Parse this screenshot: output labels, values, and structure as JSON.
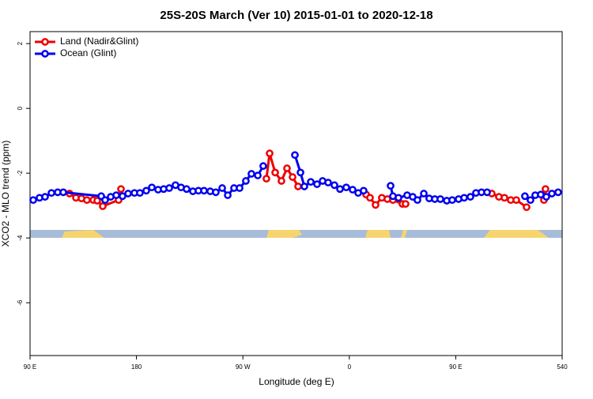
{
  "chart_data": {
    "type": "line",
    "title": "25S-20S March (Ver 10)   2015-01-01 to 2020-12-18",
    "x_label": "Longitude (deg E)",
    "y_label": "XCO2 - MLO trend (ppm)",
    "xlim": [
      90,
      540
    ],
    "ylim": [
      -7.63,
      2.37
    ],
    "xticks": [
      {
        "value": 90,
        "label": "90 E"
      },
      180,
      {
        "value": 270,
        "label": "90 W"
      },
      {
        "value": 360,
        "label": "0"
      },
      {
        "value": 450,
        "label": "90 E"
      },
      540
    ],
    "yticks": [
      2,
      0,
      -2,
      -4,
      -6
    ],
    "legend": "top-left",
    "series": [
      {
        "name": "Land (Nadir&Glint)",
        "color": "#ee0000",
        "x": [
          123.4,
          128.8,
          133.5,
          138.1,
          143.5,
          146.8,
          151.5,
          164.9,
          166.9,
          null,
          289.9,
          292.6,
          297.3,
          302.6,
          307.3,
          312.0,
          316.7,
          null,
          374.2,
          377.5,
          382.2,
          387.5,
          392.2,
          396.9,
          404.9,
          407.6,
          null,
          480.5,
          486.5,
          491.2,
          496.5,
          501.2,
          509.9,
          null,
          524.6,
          525.9
        ],
        "values": [
          -2.63,
          -2.76,
          -2.78,
          -2.83,
          -2.83,
          -2.85,
          -3.02,
          -2.83,
          -2.49,
          null,
          -2.17,
          -1.39,
          -1.98,
          -2.24,
          -1.85,
          -2.12,
          -2.41,
          null,
          -2.66,
          -2.76,
          -2.98,
          -2.76,
          -2.8,
          -2.83,
          -2.95,
          -2.95,
          null,
          -2.63,
          -2.73,
          -2.76,
          -2.83,
          -2.83,
          -3.05,
          null,
          -2.83,
          -2.49
        ]
      },
      {
        "name": "Ocean (Glint)",
        "color": "#0000ee",
        "x": [
          92.7,
          98.0,
          102.7,
          108.1,
          113.4,
          118.1,
          150.2,
          153.5,
          158.2,
          162.9,
          168.2,
          172.9,
          178.3,
          182.9,
          188.3,
          193.0,
          198.3,
          203.0,
          207.7,
          213.0,
          217.7,
          222.4,
          227.7,
          232.4,
          237.1,
          242.4,
          247.1,
          252.5,
          257.2,
          262.5,
          267.2,
          272.5,
          277.2,
          282.6,
          287.2,
          null,
          314.0,
          318.7,
          322.0,
          327.4,
          332.7,
          337.4,
          342.1,
          347.4,
          352.1,
          357.4,
          362.8,
          367.5,
          372.1,
          null,
          394.9,
          396.9,
          401.6,
          408.9,
          413.6,
          417.6,
          423.0,
          427.6,
          432.3,
          437.0,
          442.4,
          447.0,
          452.4,
          457.1,
          462.4,
          467.1,
          471.8,
          476.5,
          null,
          508.5,
          513.2,
          517.2,
          521.9,
          526.6,
          531.3,
          536.6
        ],
        "values": [
          -2.83,
          -2.76,
          -2.73,
          -2.61,
          -2.59,
          -2.59,
          -2.71,
          -2.83,
          -2.73,
          -2.68,
          -2.71,
          -2.63,
          -2.61,
          -2.61,
          -2.54,
          -2.44,
          -2.51,
          -2.49,
          -2.46,
          -2.37,
          -2.44,
          -2.49,
          -2.56,
          -2.54,
          -2.54,
          -2.56,
          -2.59,
          -2.46,
          -2.68,
          -2.46,
          -2.46,
          -2.24,
          -2.02,
          -2.07,
          -1.78,
          null,
          -1.44,
          -1.98,
          -2.41,
          -2.27,
          -2.34,
          -2.24,
          -2.29,
          -2.37,
          -2.49,
          -2.44,
          -2.51,
          -2.61,
          -2.54,
          null,
          -2.39,
          -2.71,
          -2.76,
          -2.68,
          -2.73,
          -2.83,
          -2.63,
          -2.78,
          -2.8,
          -2.8,
          -2.85,
          -2.83,
          -2.8,
          -2.76,
          -2.73,
          -2.61,
          -2.59,
          -2.59,
          null,
          -2.71,
          -2.83,
          -2.68,
          -2.66,
          -2.73,
          -2.63,
          -2.59
        ]
      }
    ]
  }
}
